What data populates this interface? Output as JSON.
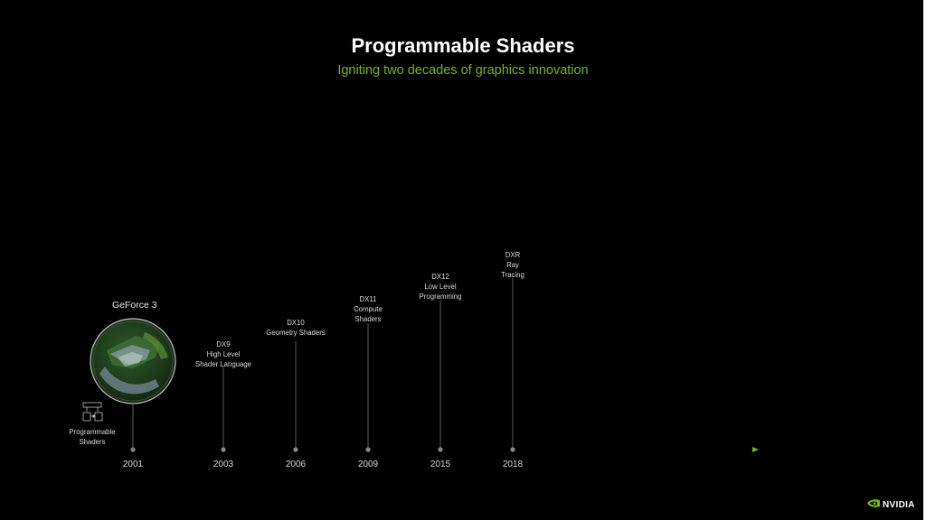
{
  "title": "Programmable Shaders",
  "subtitle": "Igniting two decades of graphics innovation",
  "gpu": {
    "name": "GeForce 3",
    "feature_lines": [
      "Programmable",
      "Shaders"
    ]
  },
  "milestones": [
    {
      "year": "2001",
      "lines": []
    },
    {
      "year": "2003",
      "lines": [
        "DX9",
        "High Level",
        "Shader Language"
      ]
    },
    {
      "year": "2006",
      "lines": [
        "DX10",
        "Geometry Shaders"
      ]
    },
    {
      "year": "2009",
      "lines": [
        "DX11",
        "Compute",
        "Shaders"
      ]
    },
    {
      "year": "2015",
      "lines": [
        "DX12",
        "Low Level",
        "Programming"
      ]
    },
    {
      "year": "2018",
      "lines": [
        "DXR",
        "Ray",
        "Tracing"
      ]
    }
  ],
  "brand": "NVIDIA",
  "colors": {
    "accent": "#76b900",
    "background": "#000000",
    "text": "#ffffff",
    "muted": "#d8d8d8"
  },
  "icons": {
    "feature": "programmable-shaders-icon",
    "logo": "nvidia-eye-icon"
  }
}
